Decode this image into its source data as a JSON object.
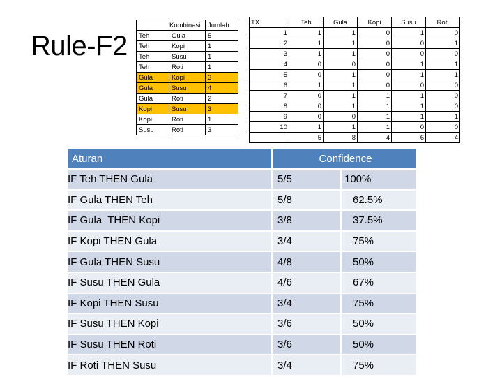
{
  "title": "Rule-F2",
  "kombinasi": {
    "header": "Kombinasi",
    "jumlah_header": "Jumlah",
    "rows": [
      {
        "a": "Teh",
        "b": "Gula",
        "n": "5",
        "hl": false
      },
      {
        "a": "Teh",
        "b": "Kopi",
        "n": "1",
        "hl": false
      },
      {
        "a": "Teh",
        "b": "Susu",
        "n": "1",
        "hl": false
      },
      {
        "a": "Teh",
        "b": "Roti",
        "n": "1",
        "hl": false
      },
      {
        "a": "Gula",
        "b": "Kopi",
        "n": "3",
        "hl": true
      },
      {
        "a": "Gula",
        "b": "Susu",
        "n": "4",
        "hl": true
      },
      {
        "a": "Gula",
        "b": "Roti",
        "n": "2",
        "hl": false
      },
      {
        "a": "Kopi",
        "b": "Susu",
        "n": "3",
        "hl": true
      },
      {
        "a": "Kopi",
        "b": "Roti",
        "n": "1",
        "hl": false
      },
      {
        "a": "Susu",
        "b": "Roti",
        "n": "3",
        "hl": false
      }
    ]
  },
  "tx": {
    "headers": [
      "TX",
      "Teh",
      "Gula",
      "Kopi",
      "Susu",
      "Roti"
    ],
    "rows": [
      [
        "1",
        "1",
        "1",
        "0",
        "1",
        "0"
      ],
      [
        "2",
        "1",
        "1",
        "0",
        "0",
        "1"
      ],
      [
        "3",
        "1",
        "1",
        "0",
        "0",
        "0"
      ],
      [
        "4",
        "0",
        "0",
        "0",
        "1",
        "1"
      ],
      [
        "5",
        "0",
        "1",
        "0",
        "1",
        "1"
      ],
      [
        "6",
        "1",
        "1",
        "0",
        "0",
        "0"
      ],
      [
        "7",
        "0",
        "1",
        "1",
        "1",
        "0"
      ],
      [
        "8",
        "0",
        "1",
        "1",
        "1",
        "0"
      ],
      [
        "9",
        "0",
        "0",
        "1",
        "1",
        "1"
      ],
      [
        "10",
        "1",
        "1",
        "1",
        "0",
        "0"
      ]
    ],
    "totals": [
      "",
      "5",
      "8",
      "4",
      "6",
      "4"
    ]
  },
  "rules": {
    "header_rule": "Aturan",
    "header_conf": "Confidence",
    "items": [
      {
        "rule": "IF Teh THEN Gula",
        "ratio": "5/5",
        "conf": "100%",
        "indent": 0
      },
      {
        "rule": "IF Gula THEN Teh",
        "ratio": "5/8",
        "conf": "62.5%",
        "indent": 1
      },
      {
        "rule": "IF Gula  THEN Kopi",
        "ratio": "3/8",
        "conf": "37.5%",
        "indent": 0
      },
      {
        "rule": "IF Kopi THEN Gula",
        "ratio": "3/4",
        "conf": "75%",
        "indent": 1
      },
      {
        "rule": "IF Gula THEN Susu",
        "ratio": "4/8",
        "conf": "50%",
        "indent": 0
      },
      {
        "rule": "IF Susu THEN Gula",
        "ratio": "4/6",
        "conf": "67%",
        "indent": 1
      },
      {
        "rule": "IF Kopi THEN Susu",
        "ratio": "3/4",
        "conf": "75%",
        "indent": 0
      },
      {
        "rule": "IF Susu THEN Kopi",
        "ratio": "3/6",
        "conf": "50%",
        "indent": 2
      },
      {
        "rule": "IF Susu THEN Roti",
        "ratio": "3/6",
        "conf": "50%",
        "indent": 0
      },
      {
        "rule": "IF Roti THEN Susu",
        "ratio": "3/4",
        "conf": "75%",
        "indent": 2
      }
    ]
  },
  "colors": {
    "highlight": "#ffc000",
    "header_blue": "#4f81bd",
    "row_odd": "#d0d8e8",
    "row_even": "#e9edf4"
  }
}
